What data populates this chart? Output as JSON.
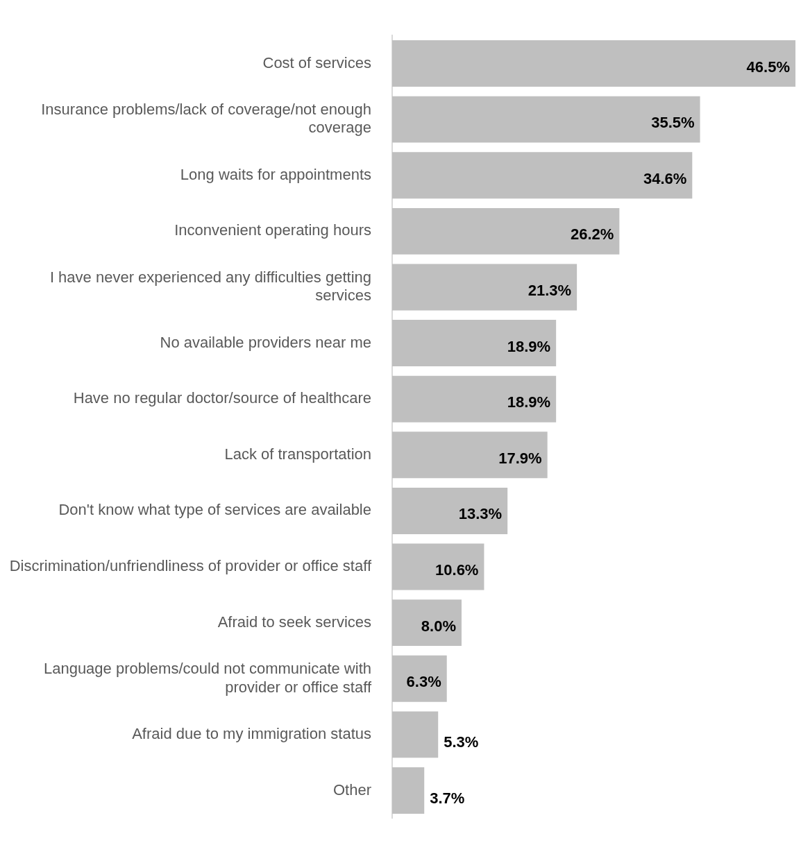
{
  "chart_data": {
    "type": "bar",
    "orientation": "horizontal",
    "categories": [
      "Cost of services",
      "Insurance problems/lack of coverage/not enough coverage",
      "Long waits for appointments",
      "Inconvenient operating hours",
      "I have never experienced any difficulties getting services",
      "No available providers near me",
      "Have no regular doctor/source of healthcare",
      "Lack of transportation",
      "Don't know what type of services are available",
      "Discrimination/unfriendliness of provider or office staff",
      "Afraid to seek services",
      "Language problems/could not communicate with provider or office staff",
      "Afraid due to my immigration status",
      "Other"
    ],
    "values": [
      46.5,
      35.5,
      34.6,
      26.2,
      21.3,
      18.9,
      18.9,
      17.9,
      13.3,
      10.6,
      8.0,
      6.3,
      5.3,
      3.7
    ],
    "value_labels": [
      "46.5%",
      "35.5%",
      "34.6%",
      "26.2%",
      "21.3%",
      "18.9%",
      "18.9%",
      "17.9%",
      "13.3%",
      "10.6%",
      "8.0%",
      "6.3%",
      "5.3%",
      "3.7%"
    ],
    "color": "#bfbfbf",
    "grid": false,
    "legend": false,
    "tick_labels": "y"
  }
}
